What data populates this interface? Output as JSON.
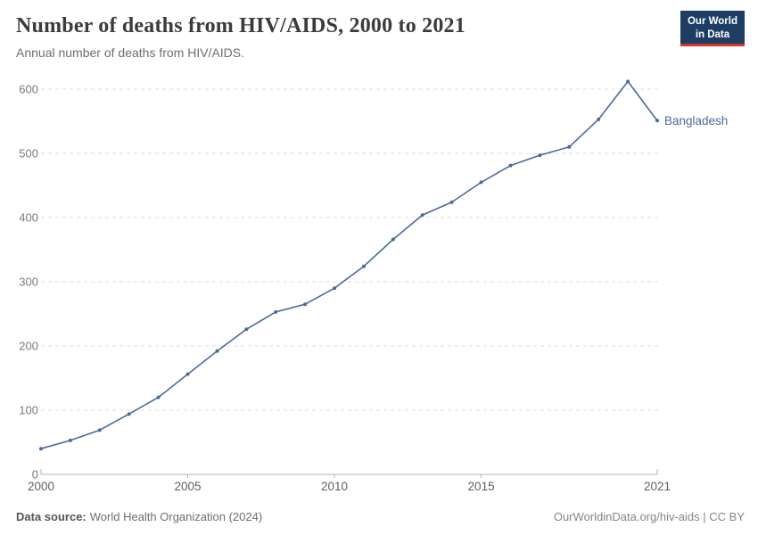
{
  "header": {
    "title": "Number of deaths from HIV/AIDS, 2000 to 2021",
    "subtitle": "Annual number of deaths from HIV/AIDS.",
    "logo": {
      "line1": "Our World",
      "line2": "in Data",
      "bg_color": "#1d3d63",
      "accent_color": "#d8352a"
    }
  },
  "chart_data": {
    "type": "line",
    "title": "Number of deaths from HIV/AIDS, 2000 to 2021",
    "xlabel": "",
    "ylabel": "",
    "xlim": [
      2000,
      2021
    ],
    "ylim": [
      0,
      600
    ],
    "x_ticks": [
      2000,
      2005,
      2010,
      2015,
      2021
    ],
    "y_ticks": [
      0,
      100,
      200,
      300,
      400,
      500,
      600
    ],
    "grid": "horizontal-dashed",
    "legend_position": "end-of-line",
    "series": [
      {
        "name": "Bangladesh",
        "color": "#4c6a9c",
        "x": [
          2000,
          2001,
          2002,
          2003,
          2004,
          2005,
          2006,
          2007,
          2008,
          2009,
          2010,
          2011,
          2012,
          2013,
          2014,
          2015,
          2016,
          2017,
          2018,
          2019,
          2020,
          2021
        ],
        "values": [
          40,
          53,
          69,
          94,
          120,
          156,
          192,
          226,
          253,
          265,
          290,
          324,
          366,
          404,
          424,
          455,
          481,
          497,
          510,
          553,
          612,
          551
        ]
      }
    ]
  },
  "footer": {
    "source_label": "Data source:",
    "source_text": "World Health Organization (2024)",
    "credit": "OurWorldinData.org/hiv-aids | CC BY"
  },
  "colors": {
    "line": "#4c6a9c",
    "gridline": "#dcdcdc",
    "axis": "#b3b3b3",
    "y_tick_label": "#7a7a7a",
    "x_tick_label": "#5f5f5f"
  }
}
